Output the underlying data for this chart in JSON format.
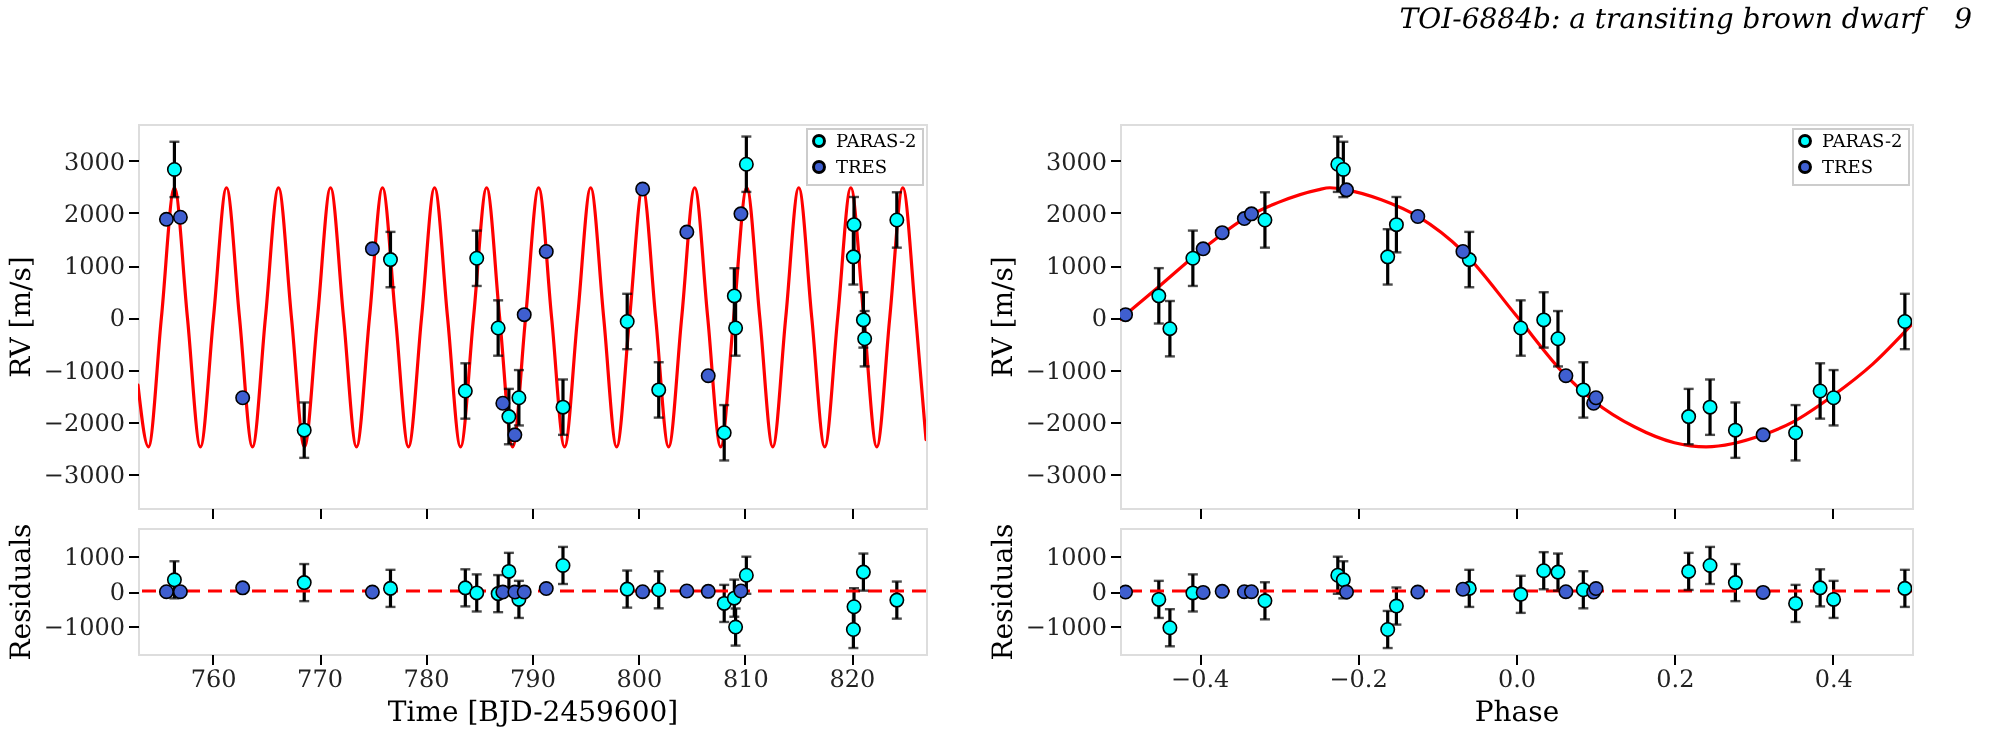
{
  "chart_data": [
    {
      "type": "scatter",
      "ylabel": "RV [m/s]",
      "xlim": [
        753,
        827
      ],
      "ylim": [
        -3650,
        3700
      ],
      "xticks": [
        760,
        770,
        780,
        790,
        800,
        810,
        820
      ],
      "yticks": [
        -3000,
        -2000,
        -1000,
        0,
        1000,
        2000,
        3000
      ],
      "tick_labels": "y",
      "legend": "top right",
      "marker": "circle",
      "series": [
        {
          "name": "PARAS-2",
          "color": "#00ffff",
          "x": [
            756.42,
            768.61,
            776.71,
            783.74,
            784.81,
            786.82,
            787.83,
            788.77,
            792.91,
            798.94,
            801.9,
            808.05,
            809.0,
            809.12,
            810.13,
            820.24,
            820.18,
            821.12,
            821.24,
            824.26
          ],
          "values": [
            2830,
            -2160,
            1105,
            -1410,
            1130,
            -205,
            -1900,
            -1540,
            -1720,
            -80,
            -1390,
            -2210,
            410,
            -205,
            2930,
            1773,
            1157,
            -50,
            -410,
            1863
          ],
          "errors": [
            530,
            530,
            530,
            530,
            530,
            530,
            530,
            530,
            530,
            530,
            530,
            530,
            530,
            530,
            530,
            530,
            530,
            530,
            530,
            530
          ]
        },
        {
          "name": "TRES",
          "color": "#3f5fd0",
          "x": [
            755.67,
            756.98,
            762.83,
            775.01,
            787.26,
            788.39,
            789.27,
            791.34,
            800.39,
            804.54,
            806.55,
            809.62
          ],
          "values": [
            1876,
            1915,
            -1540,
            1311,
            -1645,
            -2250,
            51,
            1260,
            2455,
            1632,
            -1118,
            1980
          ]
        },
        {
          "type": "line",
          "marker": "none",
          "color": "#ff0000",
          "x": [
            753.0,
            753.98,
            755.2,
            756.42,
            757.64,
            758.86,
            760.09,
            761.31,
            762.53,
            763.75,
            764.97,
            766.19,
            767.41,
            768.63,
            769.86,
            771.08,
            772.3,
            773.52,
            774.74,
            775.96,
            777.18,
            778.4,
            779.63,
            780.85,
            782.07,
            783.29,
            784.51,
            785.74,
            786.96,
            788.18,
            789.4,
            790.62,
            791.84,
            793.06,
            794.28,
            795.51,
            796.73,
            797.95,
            799.17,
            800.39,
            801.61,
            802.83,
            804.06,
            805.28,
            806.5,
            807.72,
            808.94,
            810.17,
            811.39,
            812.61,
            813.83,
            815.05,
            816.27,
            817.49,
            818.71,
            819.94,
            821.16,
            822.38,
            823.6,
            824.82,
            826.04,
            827.0
          ],
          "values": [
            -1300,
            -2480,
            0,
            2480,
            0,
            -2480,
            0,
            2480,
            0,
            -2480,
            0,
            2480,
            0,
            -2480,
            0,
            2480,
            0,
            -2480,
            0,
            2480,
            0,
            -2480,
            0,
            2480,
            0,
            -2480,
            0,
            2480,
            0,
            -2480,
            0,
            2480,
            0,
            -2480,
            0,
            2480,
            0,
            -2480,
            0,
            2480,
            0,
            -2480,
            0,
            2480,
            0,
            -2480,
            0,
            2480,
            0,
            -2480,
            0,
            2480,
            0,
            -2480,
            0,
            2480,
            0,
            -2480,
            0,
            2480,
            0,
            -2340
          ]
        }
      ]
    },
    {
      "type": "scatter",
      "xlabel": "Time [BJD-2459600]",
      "ylabel": "Residuals",
      "xlim": [
        753,
        827
      ],
      "ylim": [
        -1800,
        1800
      ],
      "xticks": [
        760,
        770,
        780,
        790,
        800,
        810,
        820
      ],
      "yticks": [
        -1000,
        0,
        1000
      ],
      "marker": "circle",
      "series": [
        {
          "color": "#00ffff",
          "x": [
            756.42,
            768.61,
            776.71,
            783.74,
            784.81,
            786.82,
            787.83,
            788.77,
            792.91,
            798.94,
            801.9,
            808.05,
            809.0,
            809.12,
            810.13,
            820.18,
            820.24,
            821.12,
            824.26
          ],
          "values": [
            320,
            240,
            75,
            90,
            -55,
            -75,
            560,
            -240,
            730,
            55,
            35,
            -355,
            -205,
            -1030,
            450,
            -1100,
            -450,
            540,
            -260
          ],
          "errors": [
            530,
            530,
            530,
            530,
            530,
            530,
            530,
            530,
            530,
            530,
            530,
            530,
            530,
            530,
            530,
            530,
            530,
            530,
            530
          ]
        },
        {
          "color": "#3f5fd0",
          "x": [
            755.67,
            756.98,
            762.83,
            775.01,
            787.26,
            788.39,
            789.27,
            791.34,
            800.39,
            804.54,
            806.55,
            809.62
          ],
          "values": [
            -20,
            -20,
            90,
            -30,
            -30,
            -30,
            -30,
            70,
            -20,
            0,
            -10,
            0
          ]
        }
      ],
      "ref_lines": [
        {
          "axis": "y",
          "value": 0,
          "color": "#ff0000",
          "line_style": "dashed"
        }
      ]
    },
    {
      "type": "scatter",
      "ylabel": "RV [m/s]",
      "xlim": [
        -0.5,
        0.5
      ],
      "ylim": [
        -3650,
        3700
      ],
      "xticks": [
        -0.4,
        -0.2,
        0,
        0.2,
        0.4
      ],
      "yticks": [
        -3000,
        -2000,
        -1000,
        0,
        1000,
        2000,
        3000
      ],
      "tick_labels": "y",
      "legend": "top right",
      "marker": "circle",
      "annotations": [
        "TOI-6884b: a transiting brown dwarf",
        "9"
      ],
      "series": [
        {
          "name": "PARAS-2",
          "color": "#00ffff",
          "x": [
            -0.451,
            -0.437,
            -0.408,
            -0.317,
            -0.225,
            -0.218,
            -0.162,
            -0.151,
            -0.059,
            0.006,
            0.035,
            0.053,
            0.085,
            0.218,
            0.245,
            0.277,
            0.353,
            0.384,
            0.401,
            0.491
          ],
          "values": [
            411,
            -218,
            1130,
            1863,
            2930,
            2830,
            1157,
            1773,
            1105,
            -205,
            -50,
            -410,
            -1390,
            -1900,
            -1720,
            -2160,
            -2210,
            -1410,
            -1540,
            -80
          ],
          "errors": [
            530,
            530,
            530,
            530,
            530,
            530,
            530,
            530,
            530,
            530,
            530,
            530,
            530,
            530,
            530,
            530,
            530,
            530,
            530,
            530
          ]
        },
        {
          "name": "TRES",
          "color": "#3f5fd0",
          "x": [
            -0.493,
            -0.395,
            -0.371,
            -0.343,
            -0.334,
            -0.214,
            -0.124,
            -0.067,
            0.063,
            0.098,
            0.101,
            0.312
          ],
          "values": [
            51,
            1311,
            1620,
            1890,
            1980,
            2440,
            1930,
            1260,
            -1118,
            -1645,
            -1540,
            -2250
          ]
        },
        {
          "type": "line",
          "marker": "none",
          "color": "#ff0000",
          "x": [
            -0.5,
            -0.493,
            -0.45,
            -0.395,
            -0.343,
            -0.3,
            -0.25,
            -0.235,
            -0.214,
            -0.17,
            -0.124,
            -0.067,
            0.0,
            0.063,
            0.098,
            0.15,
            0.2,
            0.24,
            0.312,
            0.35,
            0.4,
            0.45,
            0.5
          ],
          "values": [
            -40,
            51,
            600,
            1311,
            1890,
            2200,
            2440,
            2480,
            2440,
            2250,
            1930,
            1260,
            40,
            -1118,
            -1600,
            -2100,
            -2400,
            -2480,
            -2250,
            -2000,
            -1500,
            -900,
            -130
          ]
        }
      ]
    },
    {
      "type": "scatter",
      "xlabel": "Phase",
      "ylabel": "Residuals",
      "xlim": [
        -0.5,
        0.5
      ],
      "ylim": [
        -1800,
        1800
      ],
      "xticks": [
        {
          "value": -0.4,
          "label": "−0.4"
        },
        {
          "value": -0.2,
          "label": "−0.2"
        },
        {
          "value": 0,
          "label": "0.0"
        },
        {
          "value": 0.2,
          "label": "0.2"
        },
        {
          "value": 0.4,
          "label": "0.4"
        }
      ],
      "yticks": [
        -1000,
        0,
        1000
      ],
      "marker": "circle",
      "series": [
        {
          "color": "#00ffff",
          "x": [
            -0.451,
            -0.437,
            -0.408,
            -0.317,
            -0.225,
            -0.218,
            -0.162,
            -0.151,
            -0.059,
            0.006,
            0.035,
            0.053,
            0.085,
            0.218,
            0.245,
            0.277,
            0.353,
            0.384,
            0.401,
            0.491
          ],
          "values": [
            -240,
            -1050,
            -55,
            -280,
            450,
            320,
            -1100,
            -430,
            75,
            -95,
            580,
            540,
            35,
            560,
            730,
            240,
            -355,
            90,
            -240,
            75
          ],
          "errors": [
            530,
            530,
            530,
            530,
            530,
            530,
            530,
            530,
            530,
            530,
            530,
            530,
            530,
            530,
            530,
            530,
            530,
            530,
            530,
            530
          ]
        },
        {
          "color": "#3f5fd0",
          "x": [
            -0.493,
            -0.395,
            -0.371,
            -0.343,
            -0.334,
            -0.214,
            -0.124,
            -0.067,
            0.063,
            0.098,
            0.101,
            0.312
          ],
          "values": [
            -30,
            -40,
            -10,
            -20,
            -20,
            -30,
            -30,
            50,
            -20,
            -30,
            70,
            -40
          ]
        }
      ],
      "ref_lines": [
        {
          "axis": "y",
          "value": 0,
          "color": "#ff0000",
          "line_style": "dashed"
        }
      ]
    }
  ]
}
